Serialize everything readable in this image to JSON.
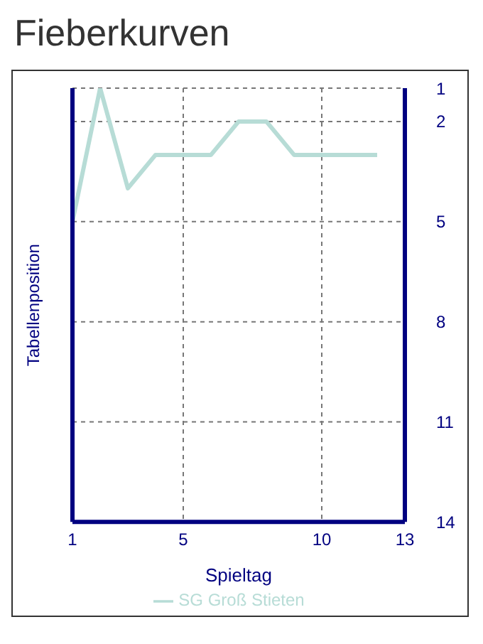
{
  "chart_data": {
    "type": "line",
    "title": "Fieberkurven",
    "xlabel": "Spieltag",
    "ylabel": "Tabellenposition",
    "x": [
      1,
      2,
      3,
      4,
      5,
      6,
      7,
      8,
      9,
      10,
      11,
      12
    ],
    "series": [
      {
        "name": "SG Groß Stieten",
        "color": "#b7dcd6",
        "values": [
          5,
          1,
          4,
          3,
          3,
          3,
          2,
          2,
          3,
          3,
          3,
          3
        ]
      }
    ],
    "xlim": [
      1,
      13
    ],
    "xticks": [
      1,
      5,
      10,
      13
    ],
    "ylim": [
      14,
      1
    ],
    "yticks": [
      1,
      2,
      5,
      8,
      11,
      14
    ],
    "grid": true,
    "legend": "bottom",
    "marker": "none",
    "line_style": "solid"
  }
}
